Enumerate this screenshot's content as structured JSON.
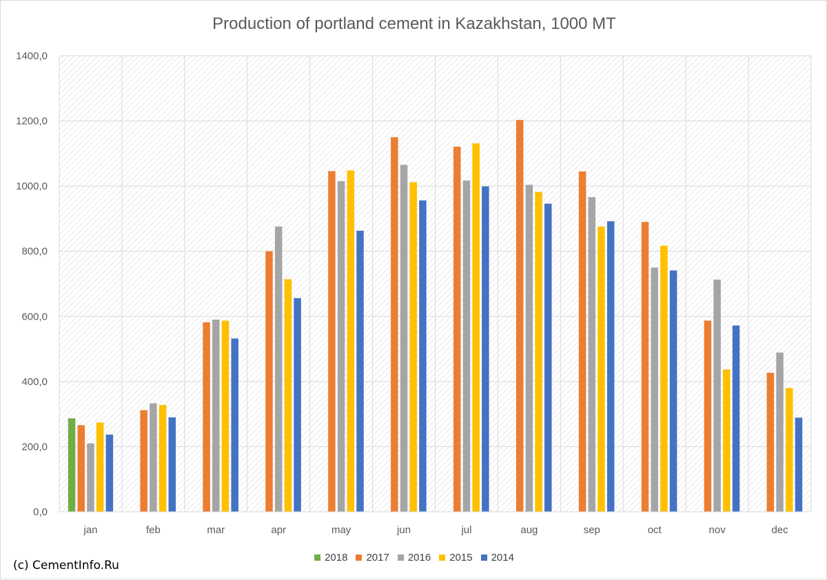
{
  "chart_data": {
    "type": "bar",
    "title": "Production of portland cement in Kazakhstan, 1000 MT",
    "categories": [
      "jan",
      "feb",
      "mar",
      "apr",
      "may",
      "jun",
      "jul",
      "aug",
      "sep",
      "oct",
      "nov",
      "dec"
    ],
    "ylim": [
      0,
      1400
    ],
    "yticks": [
      "0,0",
      "200,0",
      "400,0",
      "600,0",
      "800,0",
      "1000,0",
      "1200,0",
      "1400,0"
    ],
    "grid": true,
    "legend_position": "bottom",
    "series": [
      {
        "name": "2018",
        "color": "#70ad47",
        "values": [
          287,
          null,
          null,
          null,
          null,
          null,
          null,
          null,
          null,
          null,
          null,
          null
        ]
      },
      {
        "name": "2017",
        "color": "#ed7d31",
        "values": [
          266,
          312,
          582,
          800,
          1046,
          1150,
          1121,
          1203,
          1045,
          890,
          587,
          427
        ]
      },
      {
        "name": "2016",
        "color": "#a5a5a5",
        "values": [
          210,
          333,
          590,
          876,
          1015,
          1065,
          1017,
          1004,
          966,
          750,
          713,
          489
        ]
      },
      {
        "name": "2015",
        "color": "#ffc000",
        "values": [
          274,
          328,
          587,
          714,
          1048,
          1012,
          1131,
          982,
          876,
          817,
          437,
          380
        ]
      },
      {
        "name": "2014",
        "color": "#4472c4",
        "values": [
          237,
          290,
          532,
          656,
          863,
          956,
          999,
          946,
          892,
          741,
          572,
          289
        ]
      }
    ]
  },
  "credit": "(c) CementInfo.Ru"
}
